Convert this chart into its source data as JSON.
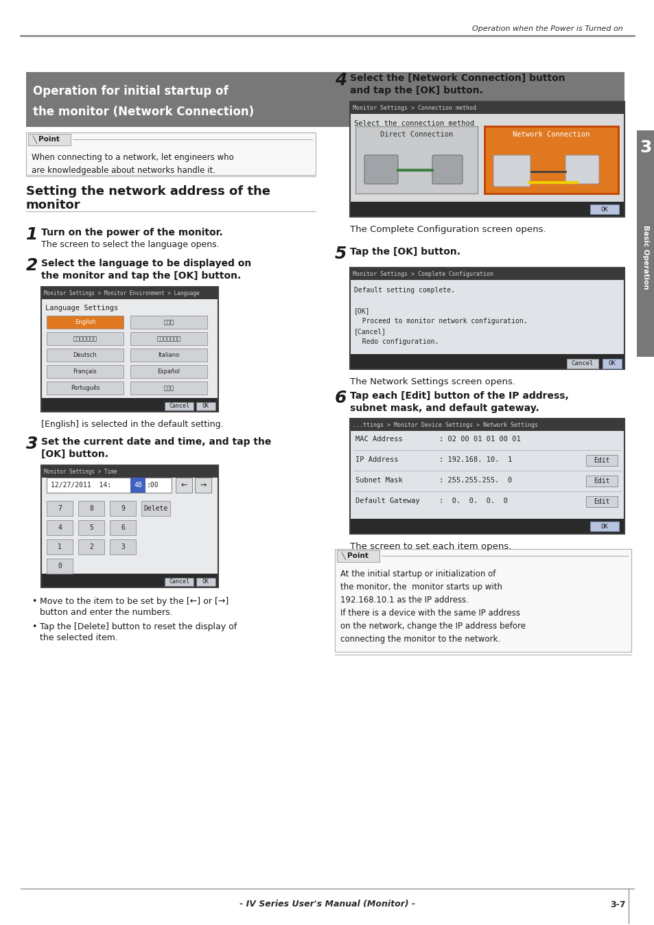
{
  "page_bg": "#ffffff",
  "top_header_text": "Operation when the Power is Turned on",
  "top_header_color": "#2a2a2a",
  "top_line_color": "#909090",
  "section_box_bg": "#787878",
  "section_box_text_line1": "Operation for initial startup of",
  "section_box_text_line2": "the monitor (Network Connection)",
  "section_box_text_color": "#ffffff",
  "point_text": "When connecting to a network, let engineers who\nare knowledgeable about networks handle it.",
  "subsection_title_line1": "Setting the network address of the",
  "subsection_title_line2": "monitor",
  "step1_bold": "Turn on the power of the monitor.",
  "step1_sub": "The screen to select the language opens.",
  "step2_bold_line1": "Select the language to be displayed on",
  "step2_bold_line2": "the monitor and tap the [OK] button.",
  "step3_bold_line1": "Set the current date and time, and tap the",
  "step3_bold_line2": "[OK] button.",
  "step3_bullets": [
    "Move to the item to be set by the [←] or [→]",
    "  button and enter the numbers.",
    "Tap the [Delete] button to reset the display of",
    "  the selected item."
  ],
  "step4_bold_line1": "Select the [Network Connection] button",
  "step4_bold_line2": "and tap the [OK] button.",
  "step4_sub": "The Complete Configuration screen opens.",
  "step5_bold": "Tap the [OK] button.",
  "step5_sub": "The Network Settings screen opens.",
  "step6_bold_line1": "Tap each [Edit] button of the IP address,",
  "step6_bold_line2": "subnet mask, and default gateway.",
  "step6_sub": "The screen to set each item opens.",
  "point2_text_lines": [
    "At the initial startup or initialization of",
    "the monitor, the  monitor starts up with",
    "192.168.10.1 as the IP address.",
    "If there is a device with the same IP address",
    "on the network, change the IP address before",
    "connecting the monitor to the network."
  ],
  "footer_center": "- IV Series User's Manual (Monitor) -",
  "footer_right": "3-7",
  "right_tab_text": "Basic Operation",
  "right_tab_bg": "#787878",
  "screen_dark_bg": "#3c3c3c",
  "screen_titlebar_bg": "#282828",
  "screen_content_bg": "#e8e8e8",
  "screen_content_bg2": "#f0f0f4",
  "screen_border": "#505050",
  "lang_sel_color": "#e07820",
  "lang_nosel_color": "#d8d8d8",
  "net_conn_color": "#e07820"
}
